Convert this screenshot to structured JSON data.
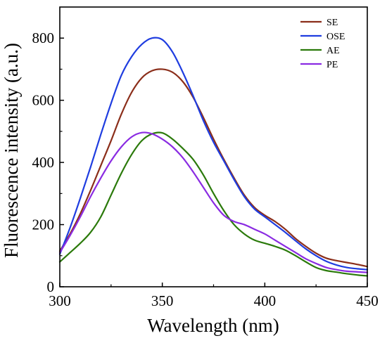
{
  "chart_data": {
    "type": "line",
    "title": "",
    "xlabel": "Wavelength (nm)",
    "ylabel": "Fluorescence intensity (a.u.)",
    "xlim": [
      300,
      450
    ],
    "ylim": [
      0,
      900
    ],
    "xticks": [
      300,
      350,
      400,
      450
    ],
    "yticks": [
      0,
      200,
      400,
      600,
      800
    ],
    "grid": false,
    "legend_position": "top-right",
    "series": [
      {
        "name": "SE",
        "color": "#8b2e1a",
        "x": [
          300,
          305,
          310,
          315,
          320,
          325,
          330,
          335,
          340,
          345,
          350,
          355,
          360,
          365,
          370,
          375,
          380,
          385,
          390,
          395,
          400,
          405,
          410,
          415,
          420,
          425,
          430,
          435,
          440,
          445,
          450
        ],
        "y": [
          115,
          170,
          235,
          310,
          390,
          470,
          555,
          625,
          672,
          695,
          700,
          690,
          660,
          610,
          545,
          475,
          410,
          350,
          295,
          255,
          230,
          210,
          185,
          155,
          130,
          108,
          92,
          84,
          78,
          72,
          65
        ]
      },
      {
        "name": "OSE",
        "color": "#1f3de0",
        "x": [
          300,
          305,
          310,
          315,
          320,
          325,
          330,
          335,
          340,
          345,
          350,
          355,
          360,
          365,
          370,
          375,
          380,
          385,
          390,
          395,
          400,
          405,
          410,
          415,
          420,
          425,
          430,
          435,
          440,
          445,
          450
        ],
        "y": [
          105,
          190,
          285,
          385,
          490,
          590,
          680,
          740,
          780,
          800,
          795,
          755,
          690,
          615,
          535,
          465,
          405,
          345,
          290,
          250,
          225,
          200,
          175,
          148,
          122,
          100,
          82,
          70,
          62,
          58,
          55
        ]
      },
      {
        "name": "AE",
        "color": "#2b7a0b",
        "x": [
          300,
          305,
          310,
          315,
          320,
          325,
          330,
          335,
          340,
          345,
          350,
          355,
          360,
          365,
          370,
          375,
          380,
          385,
          390,
          395,
          400,
          405,
          410,
          415,
          420,
          425,
          430,
          435,
          440,
          445,
          450
        ],
        "y": [
          80,
          110,
          140,
          175,
          225,
          295,
          365,
          425,
          470,
          492,
          495,
          475,
          445,
          410,
          360,
          300,
          245,
          200,
          170,
          150,
          140,
          130,
          118,
          100,
          80,
          62,
          52,
          47,
          42,
          38,
          35
        ]
      },
      {
        "name": "PE",
        "color": "#8a2be2",
        "x": [
          300,
          305,
          310,
          315,
          320,
          325,
          330,
          335,
          340,
          345,
          350,
          355,
          360,
          365,
          370,
          375,
          380,
          385,
          390,
          395,
          400,
          405,
          410,
          415,
          420,
          425,
          430,
          435,
          440,
          445,
          450
        ],
        "y": [
          110,
          165,
          225,
          290,
          350,
          405,
          450,
          482,
          496,
          492,
          475,
          450,
          415,
          370,
          320,
          270,
          230,
          210,
          200,
          185,
          170,
          150,
          130,
          110,
          90,
          75,
          62,
          55,
          50,
          48,
          46
        ]
      }
    ]
  }
}
